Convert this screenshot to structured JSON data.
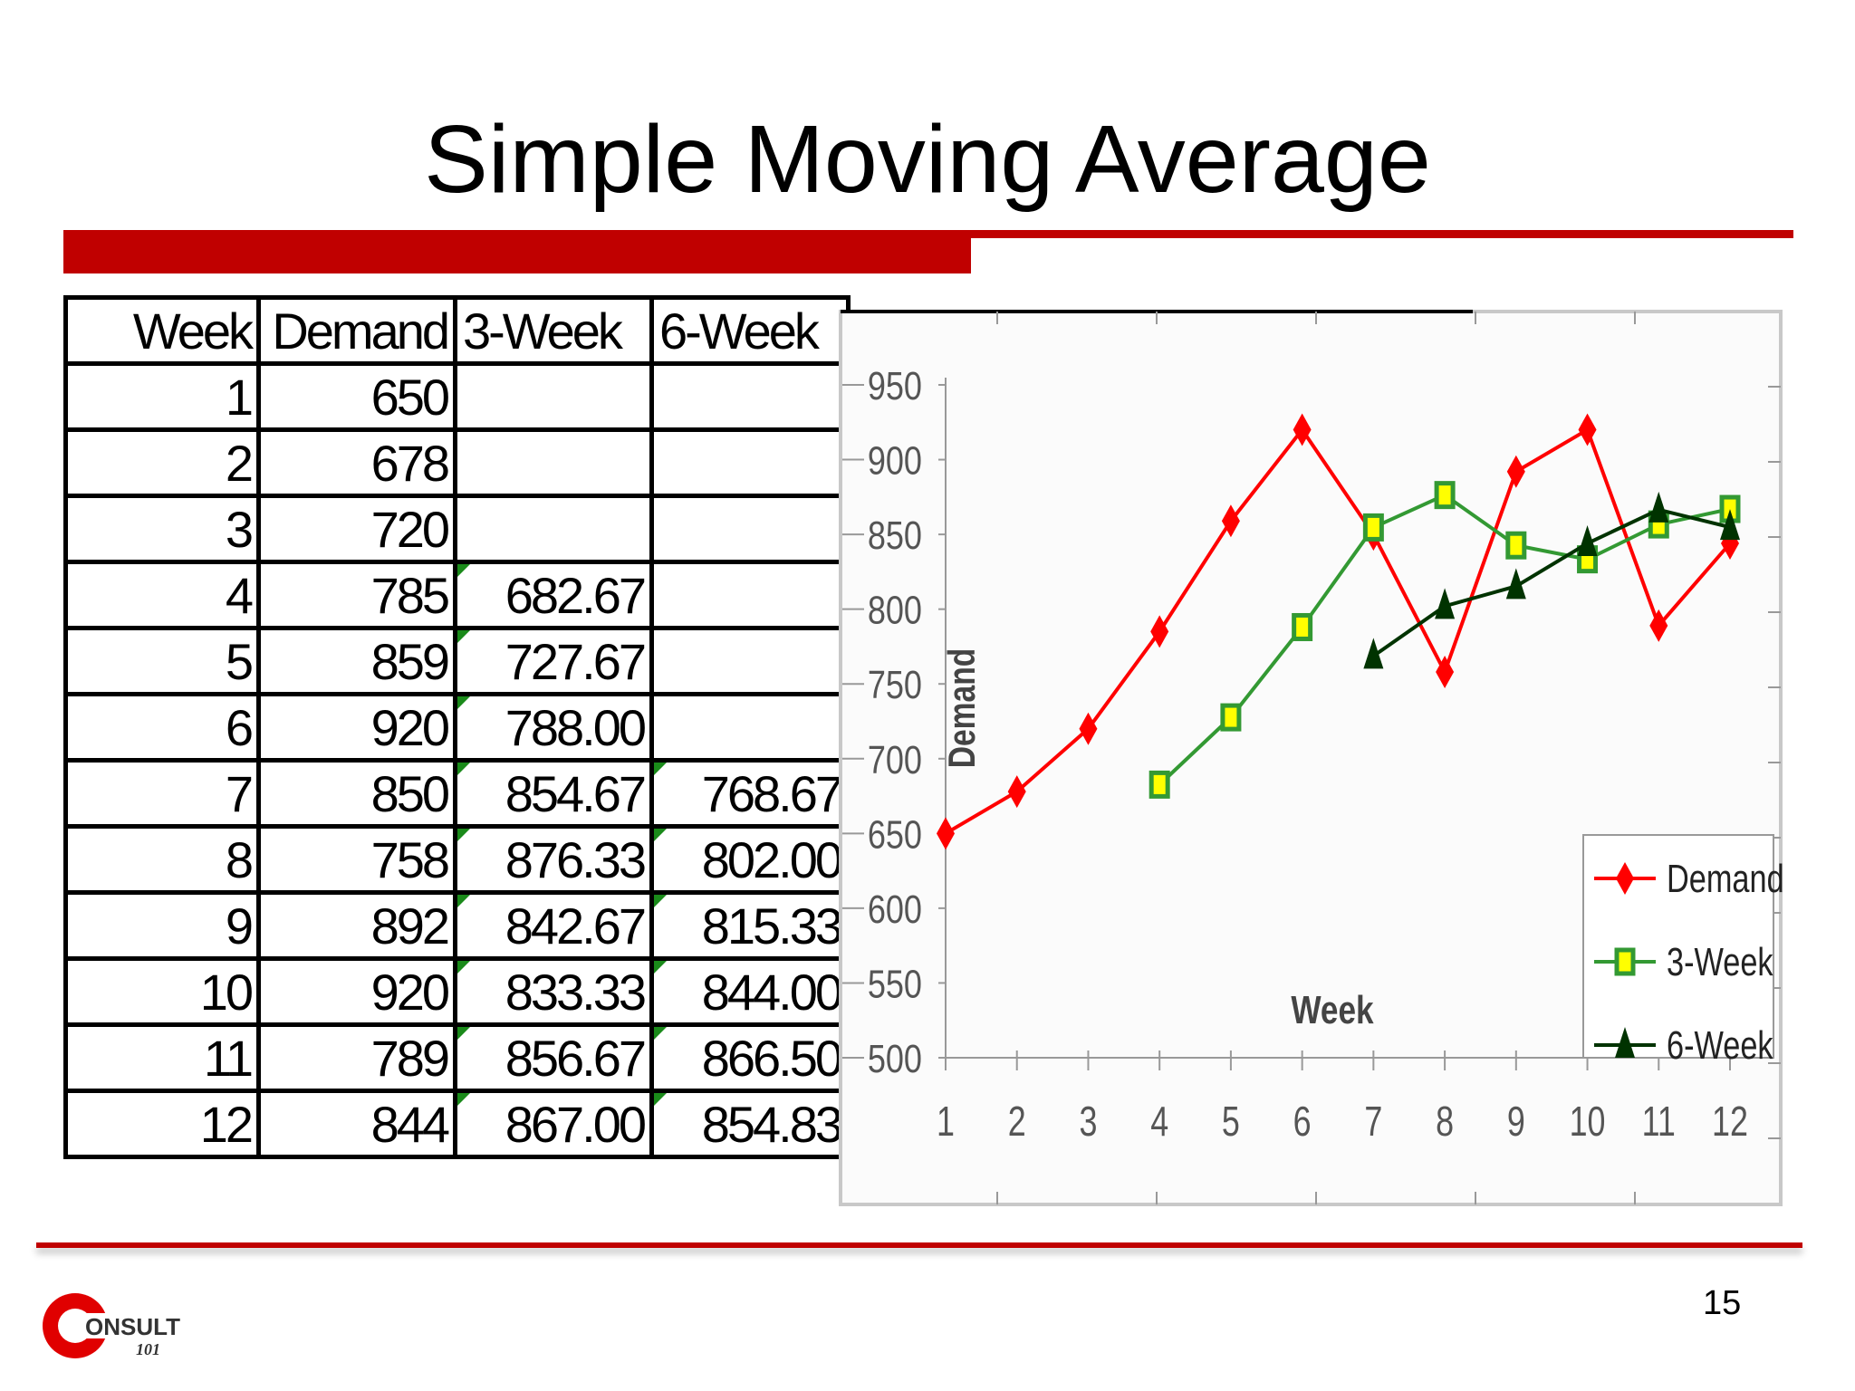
{
  "slide": {
    "title": "Simple Moving Average",
    "page_number": "15",
    "brand_color": "#c00000"
  },
  "table": {
    "headers": [
      "Week",
      "Demand",
      "3-Week",
      "6-Week"
    ],
    "rows": [
      [
        "1",
        "650",
        "",
        ""
      ],
      [
        "2",
        "678",
        "",
        ""
      ],
      [
        "3",
        "720",
        "",
        ""
      ],
      [
        "4",
        "785",
        "682.67",
        ""
      ],
      [
        "5",
        "859",
        "727.67",
        ""
      ],
      [
        "6",
        "920",
        "788.00",
        ""
      ],
      [
        "7",
        "850",
        "854.67",
        "768.67"
      ],
      [
        "8",
        "758",
        "876.33",
        "802.00"
      ],
      [
        "9",
        "892",
        "842.67",
        "815.33"
      ],
      [
        "10",
        "920",
        "833.33",
        "844.00"
      ],
      [
        "11",
        "789",
        "856.67",
        "866.50"
      ],
      [
        "12",
        "844",
        "867.00",
        "854.83"
      ]
    ]
  },
  "chart_data": {
    "type": "line",
    "title": "",
    "xlabel": "Week",
    "ylabel": "Demand",
    "x": [
      1,
      2,
      3,
      4,
      5,
      6,
      7,
      8,
      9,
      10,
      11,
      12
    ],
    "ylim": [
      500,
      950
    ],
    "yticks": [
      500,
      550,
      600,
      650,
      700,
      750,
      800,
      850,
      900,
      950
    ],
    "grid": false,
    "legend": "bottom-right",
    "series": [
      {
        "name": "Demand",
        "color": "#ff0000",
        "marker": "diamond",
        "values": [
          650,
          678,
          720,
          785,
          859,
          920,
          850,
          758,
          892,
          920,
          789,
          844
        ]
      },
      {
        "name": "3-Week",
        "color": "#339933",
        "marker": "square",
        "values": [
          null,
          null,
          null,
          682.67,
          727.67,
          788.0,
          854.67,
          876.33,
          842.67,
          833.33,
          856.67,
          867.0
        ]
      },
      {
        "name": "6-Week",
        "color": "#003300",
        "marker": "triangle",
        "values": [
          null,
          null,
          null,
          null,
          null,
          null,
          768.67,
          802.0,
          815.33,
          844.0,
          866.5,
          854.83
        ]
      }
    ]
  },
  "logo": {
    "text_main": "ONSULT",
    "text_sub": "101"
  }
}
